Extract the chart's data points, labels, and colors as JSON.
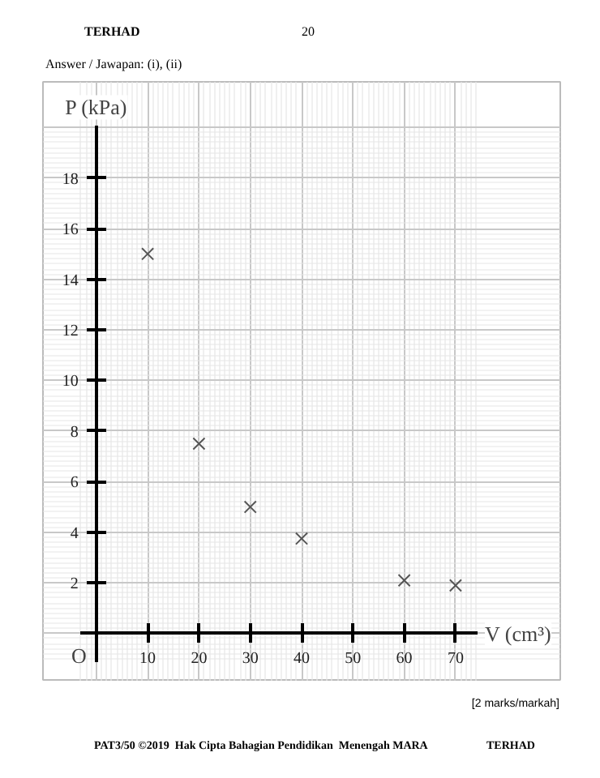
{
  "chart_data": {
    "type": "scatter",
    "xlabel": "V (cm³)",
    "ylabel": "P (kPa)",
    "x": [
      10,
      20,
      30,
      40,
      60,
      70
    ],
    "series": [
      {
        "color": "#555555",
        "values": [
          15,
          7.5,
          5,
          3.75,
          2.1,
          1.9
        ]
      }
    ],
    "marker": "cross",
    "grid": true,
    "xlim": [
      -10.4,
      90.4
    ],
    "ylim": [
      -1.9,
      21.8
    ],
    "xticks": [
      10,
      20,
      30,
      40,
      50,
      60,
      70
    ],
    "yticks": [
      2,
      4,
      6,
      8,
      10,
      12,
      14,
      16,
      18
    ],
    "annotations": [
      "TERHAD",
      "20",
      "Answer / Jawapan: (i), (ii)",
      "O",
      "[2 marks/markah]",
      "PAT3/50 ©2019  Hak Cipta Bahagian Pendidikan  Menengah MARA",
      "TERHAD"
    ]
  }
}
